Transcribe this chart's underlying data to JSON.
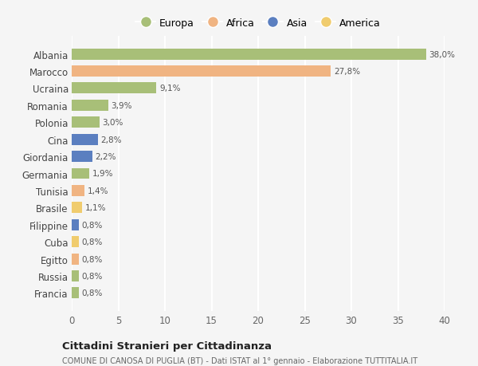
{
  "countries": [
    "Albania",
    "Marocco",
    "Ucraina",
    "Romania",
    "Polonia",
    "Cina",
    "Giordania",
    "Germania",
    "Tunisia",
    "Brasile",
    "Filippine",
    "Cuba",
    "Egitto",
    "Russia",
    "Francia"
  ],
  "values": [
    38.0,
    27.8,
    9.1,
    3.9,
    3.0,
    2.8,
    2.2,
    1.9,
    1.4,
    1.1,
    0.8,
    0.8,
    0.8,
    0.8,
    0.8
  ],
  "labels": [
    "38,0%",
    "27,8%",
    "9,1%",
    "3,9%",
    "3,0%",
    "2,8%",
    "2,2%",
    "1,9%",
    "1,4%",
    "1,1%",
    "0,8%",
    "0,8%",
    "0,8%",
    "0,8%",
    "0,8%"
  ],
  "continents": [
    "Europa",
    "Africa",
    "Europa",
    "Europa",
    "Europa",
    "Asia",
    "Asia",
    "Europa",
    "Africa",
    "America",
    "Asia",
    "America",
    "Africa",
    "Europa",
    "Europa"
  ],
  "colors": {
    "Europa": "#a8bf78",
    "Africa": "#f0b482",
    "Asia": "#5b7fc0",
    "America": "#f0cc6e"
  },
  "bg_color": "#f5f5f5",
  "grid_color": "#ffffff",
  "title": "Cittadini Stranieri per Cittadinanza",
  "subtitle": "COMUNE DI CANOSA DI PUGLIA (BT) - Dati ISTAT al 1° gennaio - Elaborazione TUTTITALIA.IT",
  "xlim": [
    0,
    40
  ],
  "xticks": [
    0,
    5,
    10,
    15,
    20,
    25,
    30,
    35,
    40
  ],
  "legend_order": [
    "Europa",
    "Africa",
    "Asia",
    "America"
  ]
}
